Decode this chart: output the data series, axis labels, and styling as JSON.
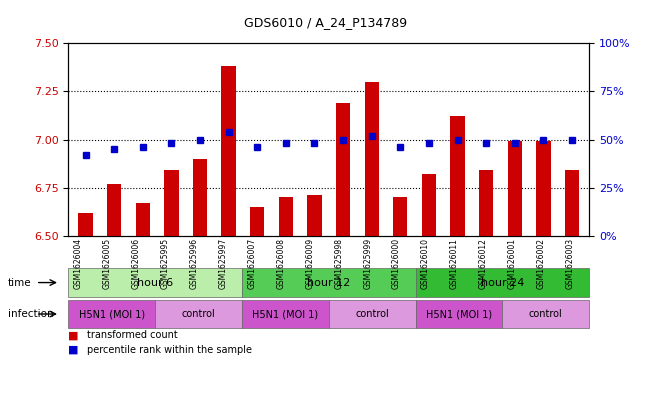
{
  "title": "GDS6010 / A_24_P134789",
  "samples": [
    "GSM1626004",
    "GSM1626005",
    "GSM1626006",
    "GSM1625995",
    "GSM1625996",
    "GSM1625997",
    "GSM1626007",
    "GSM1626008",
    "GSM1626009",
    "GSM1625998",
    "GSM1625999",
    "GSM1626000",
    "GSM1626010",
    "GSM1626011",
    "GSM1626012",
    "GSM1626001",
    "GSM1626002",
    "GSM1626003"
  ],
  "bar_values": [
    6.62,
    6.77,
    6.67,
    6.84,
    6.9,
    7.38,
    6.65,
    6.7,
    6.71,
    7.19,
    7.3,
    6.7,
    6.82,
    7.12,
    6.84,
    6.99,
    6.99,
    6.84
  ],
  "dot_values": [
    42,
    45,
    46,
    48,
    50,
    54,
    46,
    48,
    48,
    50,
    52,
    46,
    48,
    50,
    48,
    48,
    50,
    50
  ],
  "ylim_left": [
    6.5,
    7.5
  ],
  "ylim_right": [
    0,
    100
  ],
  "yticks_left": [
    6.5,
    6.75,
    7.0,
    7.25,
    7.5
  ],
  "yticks_right": [
    0,
    25,
    50,
    75,
    100
  ],
  "bar_color": "#cc0000",
  "dot_color": "#0000cc",
  "time_groups": [
    {
      "label": "hour 6",
      "start": 0,
      "end": 6,
      "color": "#bbeeaa"
    },
    {
      "label": "hour 12",
      "start": 6,
      "end": 12,
      "color": "#55cc55"
    },
    {
      "label": "hour 24",
      "start": 12,
      "end": 18,
      "color": "#33bb33"
    }
  ],
  "infection_groups": [
    {
      "label": "H5N1 (MOI 1)",
      "start": 0,
      "end": 3,
      "color": "#cc55cc"
    },
    {
      "label": "control",
      "start": 3,
      "end": 6,
      "color": "#dd99dd"
    },
    {
      "label": "H5N1 (MOI 1)",
      "start": 6,
      "end": 9,
      "color": "#cc55cc"
    },
    {
      "label": "control",
      "start": 9,
      "end": 12,
      "color": "#dd99dd"
    },
    {
      "label": "H5N1 (MOI 1)",
      "start": 12,
      "end": 15,
      "color": "#cc55cc"
    },
    {
      "label": "control",
      "start": 15,
      "end": 18,
      "color": "#dd99dd"
    }
  ],
  "legend_labels": [
    "transformed count",
    "percentile rank within the sample"
  ],
  "legend_colors": [
    "#cc0000",
    "#0000cc"
  ],
  "background_color": "#ffffff",
  "left_label_color": "#cc0000",
  "right_label_color": "#0000cc"
}
